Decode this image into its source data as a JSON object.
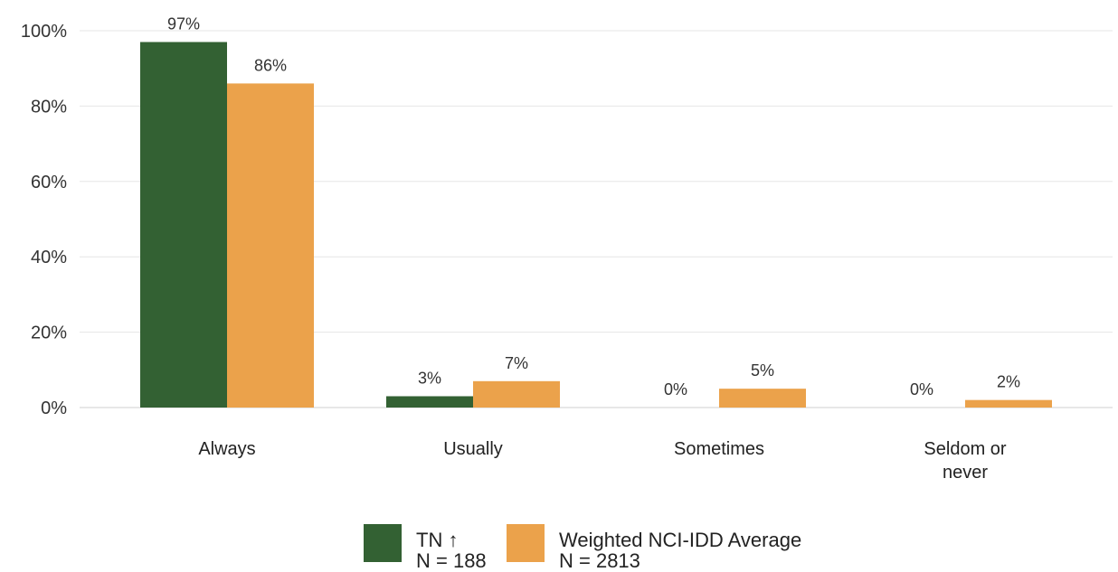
{
  "chart_data": {
    "type": "bar",
    "categories": [
      "Always",
      "Usually",
      "Sometimes",
      "Seldom or never"
    ],
    "category_lines": [
      [
        "Always"
      ],
      [
        "Usually"
      ],
      [
        "Sometimes"
      ],
      [
        "Seldom or",
        "never"
      ]
    ],
    "series": [
      {
        "name": "TN",
        "sample": "N = 188",
        "marker": "↑",
        "color": "#336133",
        "values": [
          97,
          3,
          0,
          0
        ],
        "labels": [
          "97%",
          "3%",
          "0%",
          "0%"
        ]
      },
      {
        "name": "Weighted NCI-IDD Average",
        "sample": "N = 2813",
        "color": "#eba24b",
        "values": [
          86,
          7,
          5,
          2
        ],
        "labels": [
          "86%",
          "7%",
          "5%",
          "2%"
        ]
      }
    ],
    "ylim": [
      0,
      100
    ],
    "yticks": [
      "0%",
      "20%",
      "40%",
      "60%",
      "80%",
      "100%"
    ],
    "ytick_values": [
      0,
      20,
      40,
      60,
      80,
      100
    ],
    "grid": true,
    "legend": "bottom-center",
    "title": "",
    "xlabel": "",
    "ylabel": ""
  }
}
